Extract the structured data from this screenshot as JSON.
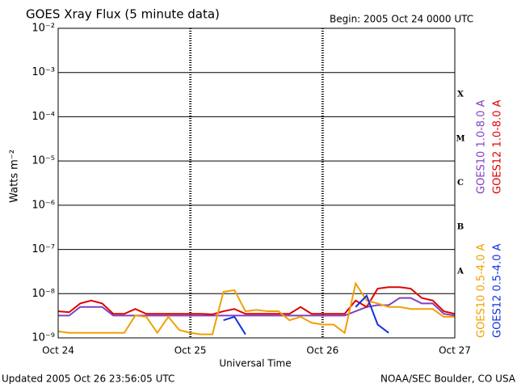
{
  "chart_data": {
    "type": "line",
    "title": "GOES Xray Flux (5 minute data)",
    "subtitle": "Begin:  2005 Oct 24 0000 UTC",
    "y_label": "Watts m⁻²",
    "x_label": "Universal Time",
    "footer_left": "Updated 2005 Oct 26 23:56:05 UTC",
    "footer_right": "NOAA/SEC Boulder, CO USA",
    "log_scale": true,
    "grid": true,
    "legend": "right",
    "xlim": [
      0,
      72
    ],
    "xticks": [
      {
        "value": 0,
        "label": "Oct 24"
      },
      {
        "value": 24,
        "label": "Oct 25"
      },
      {
        "value": 48,
        "label": "Oct 26"
      },
      {
        "value": 72,
        "label": "Oct 27"
      }
    ],
    "ylim": [
      1e-09,
      0.01
    ],
    "yticks": [
      {
        "value": 1e-09,
        "label": "10⁻⁹"
      },
      {
        "value": 1e-08,
        "label": "10⁻⁸"
      },
      {
        "value": 1e-07,
        "label": "10⁻⁷"
      },
      {
        "value": 1e-06,
        "label": "10⁻⁶"
      },
      {
        "value": 1e-05,
        "label": "10⁻⁵"
      },
      {
        "value": 0.0001,
        "label": "10⁻⁴"
      },
      {
        "value": 0.001,
        "label": "10⁻³"
      },
      {
        "value": 0.01,
        "label": "10⁻²"
      }
    ],
    "flare_classes": [
      {
        "label": "X",
        "value": 0.0001
      },
      {
        "label": "M",
        "value": 1e-05
      },
      {
        "label": "C",
        "value": 1e-06
      },
      {
        "label": "B",
        "value": 1e-07
      },
      {
        "label": "A",
        "value": 1e-08
      }
    ],
    "x": [
      0,
      2,
      4,
      6,
      8,
      10,
      12,
      14,
      16,
      18,
      20,
      22,
      24,
      26,
      28,
      30,
      32,
      34,
      36,
      38,
      40,
      42,
      44,
      46,
      48,
      50,
      52,
      54,
      56,
      58,
      60,
      62,
      64,
      66,
      68,
      70,
      72
    ],
    "series": [
      {
        "name": "GOES10 1.0-8.0 A",
        "color": "#8040c0",
        "values": [
          3.2e-09,
          3.2e-09,
          5e-09,
          5e-09,
          5e-09,
          3.2e-09,
          3.2e-09,
          3.2e-09,
          3.2e-09,
          3.2e-09,
          3.2e-09,
          3.2e-09,
          3.2e-09,
          3.2e-09,
          3.2e-09,
          3.2e-09,
          3.2e-09,
          3.2e-09,
          3.2e-09,
          3.2e-09,
          3.2e-09,
          3.2e-09,
          3.2e-09,
          3.2e-09,
          3.2e-09,
          3.2e-09,
          3.2e-09,
          4e-09,
          5e-09,
          5.5e-09,
          5.5e-09,
          8e-09,
          8e-09,
          6e-09,
          6e-09,
          3.5e-09,
          3.2e-09
        ]
      },
      {
        "name": "GOES12 1.0-8.0 A",
        "color": "#e00000",
        "values": [
          4e-09,
          3.8e-09,
          6e-09,
          7e-09,
          6e-09,
          3.5e-09,
          3.5e-09,
          4.5e-09,
          3.5e-09,
          3.5e-09,
          3.5e-09,
          3.5e-09,
          3.5e-09,
          3.5e-09,
          3.4e-09,
          4e-09,
          4.5e-09,
          3.5e-09,
          3.5e-09,
          3.5e-09,
          3.5e-09,
          3.5e-09,
          5e-09,
          3.5e-09,
          3.5e-09,
          3.5e-09,
          3.5e-09,
          7e-09,
          5e-09,
          1.3e-08,
          1.4e-08,
          1.4e-08,
          1.3e-08,
          8e-09,
          7e-09,
          4e-09,
          3.5e-09
        ]
      },
      {
        "name": "GOES10 0.5-4.0 A",
        "color": "#f0a000",
        "values": [
          1.4e-09,
          1.3e-09,
          1.3e-09,
          1.3e-09,
          1.3e-09,
          1.3e-09,
          1.3e-09,
          3.2e-09,
          3e-09,
          1.3e-09,
          3e-09,
          1.5e-09,
          1.3e-09,
          1.2e-09,
          1.2e-09,
          1.1e-08,
          1.2e-08,
          4e-09,
          4.3e-09,
          4e-09,
          4e-09,
          2.5e-09,
          3e-09,
          2.2e-09,
          2e-09,
          2e-09,
          1.3e-09,
          1.7e-08,
          7e-09,
          6e-09,
          5e-09,
          5e-09,
          4.5e-09,
          4.5e-09,
          4.5e-09,
          3e-09,
          3e-09
        ]
      },
      {
        "name": "GOES12 0.5-4.0 A",
        "color": "#1030e0",
        "values": [
          null,
          null,
          null,
          null,
          null,
          null,
          null,
          null,
          null,
          null,
          null,
          null,
          null,
          null,
          null,
          2.5e-09,
          3e-09,
          1.2e-09,
          null,
          null,
          null,
          null,
          null,
          null,
          null,
          null,
          null,
          5e-09,
          9e-09,
          2e-09,
          1.3e-09,
          null,
          null,
          null,
          null,
          null,
          null
        ]
      }
    ]
  }
}
